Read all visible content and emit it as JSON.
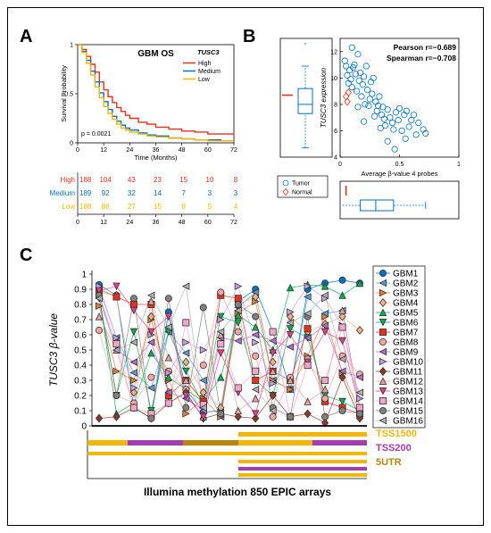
{
  "panel_labels": {
    "a": "A",
    "b": "B",
    "c": "C"
  },
  "chart_data": [
    {
      "panel": "A",
      "type": "line",
      "title": "GBM OS",
      "legend_title": "TUSC3",
      "xlabel": "Time (Months)",
      "ylabel": "Survival Probability",
      "xlim": [
        0,
        72
      ],
      "ylim": [
        0,
        1
      ],
      "xticks": [
        0,
        12,
        24,
        36,
        48,
        60,
        72
      ],
      "yticks": [
        0,
        0.5,
        1
      ],
      "legend_position": "top-right",
      "annotation": "p = 0.0021",
      "series": [
        {
          "name": "High",
          "color": "#e8301c",
          "x": [
            0,
            2,
            4,
            6,
            8,
            10,
            12,
            14,
            16,
            18,
            20,
            22,
            24,
            28,
            32,
            36,
            42,
            48,
            54,
            60,
            66,
            72
          ],
          "y": [
            1.0,
            0.95,
            0.88,
            0.8,
            0.72,
            0.62,
            0.54,
            0.47,
            0.41,
            0.36,
            0.32,
            0.28,
            0.25,
            0.21,
            0.19,
            0.16,
            0.14,
            0.12,
            0.11,
            0.09,
            0.09,
            0.08
          ]
        },
        {
          "name": "Medium",
          "color": "#0070c0",
          "x": [
            0,
            2,
            4,
            6,
            8,
            10,
            12,
            14,
            16,
            18,
            20,
            22,
            24,
            28,
            32,
            36,
            42,
            48,
            54,
            60,
            66,
            72
          ],
          "y": [
            1.0,
            0.93,
            0.84,
            0.73,
            0.62,
            0.51,
            0.42,
            0.34,
            0.27,
            0.22,
            0.18,
            0.15,
            0.13,
            0.1,
            0.08,
            0.07,
            0.05,
            0.04,
            0.03,
            0.03,
            0.02,
            0.02
          ]
        },
        {
          "name": "Low",
          "color": "#f2b705",
          "x": [
            0,
            2,
            4,
            6,
            8,
            10,
            12,
            14,
            16,
            18,
            20,
            22,
            24,
            28,
            32,
            36,
            42,
            48,
            54,
            60,
            66,
            72
          ],
          "y": [
            1.0,
            0.92,
            0.81,
            0.69,
            0.57,
            0.46,
            0.37,
            0.3,
            0.24,
            0.19,
            0.15,
            0.13,
            0.11,
            0.09,
            0.07,
            0.06,
            0.05,
            0.04,
            0.03,
            0.02,
            0.02,
            0.02
          ]
        }
      ],
      "risk_table": {
        "times": [
          0,
          12,
          24,
          36,
          48,
          60,
          72
        ],
        "rows": [
          {
            "label": "High",
            "color": "#e8301c",
            "values": [
              188,
              104,
              43,
              23,
              15,
              10,
              8
            ]
          },
          {
            "label": "Medium",
            "color": "#0070c0",
            "values": [
              189,
              92,
              32,
              14,
              7,
              3,
              3
            ]
          },
          {
            "label": "Low",
            "color": "#f2b705",
            "values": [
              188,
              86,
              27,
              15,
              8,
              5,
              4
            ]
          }
        ]
      }
    },
    {
      "panel": "B",
      "type": "scatter",
      "xlabel": "Average β-value 4 probes",
      "ylabel": "TUSC3 expression",
      "xlim": [
        0,
        1
      ],
      "ylim": [
        4,
        13
      ],
      "xticks": [
        0,
        0.5,
        1
      ],
      "yticks": [
        4,
        6,
        8,
        10,
        12
      ],
      "stats": [
        "Pearson r=−0.689",
        "Spearman r=−0.708"
      ],
      "legend": [
        {
          "name": "Tumor",
          "marker": "circle",
          "color": "#0070c0"
        },
        {
          "name": "Normal",
          "marker": "diamond",
          "color": "#e8301c"
        }
      ],
      "series": [
        {
          "name": "Tumor",
          "color": "#0070c0",
          "marker": "circle",
          "points": [
            [
              0.04,
              11.3
            ],
            [
              0.05,
              10.9
            ],
            [
              0.06,
              10.2
            ],
            [
              0.07,
              9.6
            ],
            [
              0.08,
              10.6
            ],
            [
              0.09,
              9.9
            ],
            [
              0.1,
              12.3
            ],
            [
              0.1,
              9.3
            ],
            [
              0.11,
              10.8
            ],
            [
              0.12,
              11.0
            ],
            [
              0.13,
              10.3
            ],
            [
              0.14,
              9.0
            ],
            [
              0.15,
              11.8
            ],
            [
              0.15,
              7.8
            ],
            [
              0.16,
              9.8
            ],
            [
              0.17,
              10.4
            ],
            [
              0.18,
              8.6
            ],
            [
              0.19,
              9.5
            ],
            [
              0.2,
              10.1
            ],
            [
              0.2,
              6.7
            ],
            [
              0.21,
              8.0
            ],
            [
              0.22,
              10.9
            ],
            [
              0.23,
              9.1
            ],
            [
              0.24,
              7.9
            ],
            [
              0.25,
              8.4
            ],
            [
              0.26,
              9.7
            ],
            [
              0.27,
              8.8
            ],
            [
              0.28,
              10.0
            ],
            [
              0.29,
              7.1
            ],
            [
              0.3,
              8.2
            ],
            [
              0.31,
              7.5
            ],
            [
              0.32,
              7.9
            ],
            [
              0.33,
              8.6
            ],
            [
              0.34,
              6.2
            ],
            [
              0.35,
              7.2
            ],
            [
              0.36,
              7.8
            ],
            [
              0.37,
              6.9
            ],
            [
              0.38,
              6.4
            ],
            [
              0.4,
              7.6
            ],
            [
              0.42,
              7.0
            ],
            [
              0.44,
              6.6
            ],
            [
              0.45,
              6.1
            ],
            [
              0.47,
              7.4
            ],
            [
              0.49,
              6.8
            ],
            [
              0.5,
              7.7
            ],
            [
              0.52,
              6.0
            ],
            [
              0.54,
              7.2
            ],
            [
              0.55,
              5.4
            ],
            [
              0.56,
              7.5
            ],
            [
              0.58,
              6.3
            ],
            [
              0.6,
              6.8
            ],
            [
              0.62,
              7.2
            ],
            [
              0.64,
              5.7
            ],
            [
              0.66,
              6.6
            ],
            [
              0.7,
              6.1
            ],
            [
              0.72,
              5.8
            ],
            [
              0.4,
              5.2
            ],
            [
              0.46,
              4.6
            ]
          ]
        },
        {
          "name": "Normal",
          "color": "#e8301c",
          "marker": "diamond",
          "points": [
            [
              0.05,
              8.6
            ],
            [
              0.06,
              8.2
            ],
            [
              0.07,
              8.9
            ]
          ]
        }
      ],
      "boxplot_y": {
        "whisker_low": 4.7,
        "q1": 7.3,
        "median": 8.0,
        "q3": 9.2,
        "whisker_high": 10.9,
        "normal_range": [
          8.5,
          8.9
        ]
      },
      "boxplot_x": {
        "whisker_low": 0.02,
        "q1": 0.17,
        "median": 0.3,
        "q3": 0.45,
        "whisker_high": 0.72,
        "normal_range": [
          0.03,
          0.08
        ]
      }
    },
    {
      "panel": "C",
      "type": "line",
      "ylabel": "TUSC3 β-value",
      "ylim": [
        0,
        1
      ],
      "yticks": [
        0,
        0.1,
        0.2,
        0.3,
        0.4,
        0.5,
        0.6,
        0.7,
        0.8,
        0.9,
        1
      ],
      "n_probes": 16,
      "xlabel": "Illumina methylation 850 EPIC arrays",
      "series": [
        {
          "name": "GBM1",
          "color": "#0070c0",
          "marker": "circle",
          "values": [
            0.93,
            0.86,
            0.12,
            0.05,
            0.75,
            0.24,
            0.09,
            0.1,
            0.82,
            0.9,
            0.62,
            0.24,
            0.9,
            0.94,
            0.96,
            0.94
          ]
        },
        {
          "name": "GBM2",
          "color": "#5b9bd5",
          "marker": "triangle-left",
          "values": [
            0.91,
            0.58,
            0.35,
            0.25,
            0.62,
            0.48,
            0.3,
            0.06,
            0.78,
            0.88,
            0.3,
            0.24,
            0.85,
            0.74,
            0.76,
            0.12
          ]
        },
        {
          "name": "GBM3",
          "color": "#ed7d31",
          "marker": "triangle-right",
          "values": [
            0.79,
            0.36,
            0.3,
            0.7,
            0.3,
            0.08,
            0.18,
            0.06,
            0.74,
            0.82,
            0.3,
            0.24,
            0.46,
            0.72,
            0.35,
            0.1
          ]
        },
        {
          "name": "GBM4",
          "color": "#f4b183",
          "marker": "diamond",
          "values": [
            0.88,
            0.86,
            0.22,
            0.72,
            0.22,
            0.42,
            0.22,
            0.12,
            0.8,
            0.85,
            0.42,
            0.72,
            0.62,
            0.67,
            0.72,
            0.63
          ]
        },
        {
          "name": "GBM5",
          "color": "#00b050",
          "marker": "triangle-up",
          "values": [
            0.86,
            0.08,
            0.15,
            0.48,
            0.32,
            0.24,
            0.16,
            0.32,
            0.73,
            0.65,
            0.5,
            0.91,
            0.93,
            0.92,
            0.86,
            0.94
          ]
        },
        {
          "name": "GBM6",
          "color": "#00b050",
          "marker": "triangle-down",
          "values": [
            0.84,
            0.2,
            0.62,
            0.1,
            0.62,
            0.36,
            0.14,
            0.72,
            0.68,
            0.3,
            0.2,
            0.64,
            0.58,
            0.2,
            0.16,
            0.1
          ]
        },
        {
          "name": "GBM7",
          "color": "#e8301c",
          "marker": "square",
          "values": [
            0.9,
            0.85,
            0.8,
            0.8,
            0.2,
            0.3,
            0.16,
            0.86,
            0.84,
            0.3,
            0.36,
            0.3,
            0.64,
            0.16,
            0.12,
            0.08
          ]
        },
        {
          "name": "GBM8",
          "color": "#f4a6a6",
          "marker": "circle",
          "values": [
            0.63,
            0.2,
            0.15,
            0.32,
            0.36,
            0.24,
            0.4,
            0.88,
            0.62,
            0.46,
            0.06,
            0.32,
            0.44,
            0.18,
            0.46,
            0.34
          ]
        },
        {
          "name": "GBM9",
          "color": "#b36bd3",
          "marker": "triangle-left",
          "values": [
            0.86,
            0.5,
            0.42,
            0.55,
            0.22,
            0.18,
            0.1,
            0.58,
            0.56,
            0.6,
            0.56,
            0.52,
            0.58,
            0.66,
            0.36,
            0.32
          ]
        },
        {
          "name": "GBM10",
          "color": "#c8a0e8",
          "marker": "triangle-right",
          "values": [
            0.92,
            0.58,
            0.25,
            0.6,
            0.35,
            0.55,
            0.5,
            0.7,
            0.92,
            0.55,
            0.28,
            0.75,
            0.92,
            0.84,
            0.66,
            0.18
          ]
        },
        {
          "name": "GBM11",
          "color": "#8b3a2a",
          "marker": "diamond",
          "values": [
            0.05,
            0.06,
            0.12,
            0.05,
            0.15,
            0.22,
            0.05,
            0.08,
            0.06,
            0.05,
            0.2,
            0.06,
            0.08,
            0.02,
            0.32,
            0.05
          ]
        },
        {
          "name": "GBM12",
          "color": "#e8a0a0",
          "marker": "triangle-up",
          "values": [
            0.72,
            0.5,
            0.12,
            0.82,
            0.45,
            0.3,
            0.06,
            0.6,
            0.1,
            0.18,
            0.36,
            0.3,
            0.16,
            0.24,
            0.76,
            0.12
          ]
        },
        {
          "name": "GBM13",
          "color": "#e83e8c",
          "marker": "triangle-down",
          "values": [
            0.89,
            0.92,
            0.76,
            0.62,
            0.72,
            0.2,
            0.06,
            0.48,
            0.22,
            0.08,
            0.48,
            0.6,
            0.42,
            0.62,
            0.56,
            0.12
          ]
        },
        {
          "name": "GBM14",
          "color": "#f4a6c8",
          "marker": "square",
          "values": [
            0.86,
            0.54,
            0.12,
            0.08,
            0.15,
            0.68,
            0.14,
            0.54,
            0.25,
            0.36,
            0.62,
            0.06,
            0.4,
            0.3,
            0.65,
            0.12
          ]
        },
        {
          "name": "GBM15",
          "color": "#808080",
          "marker": "circle",
          "values": [
            0.86,
            0.2,
            0.84,
            0.05,
            0.84,
            0.12,
            0.78,
            0.08,
            0.8,
            0.72,
            0.12,
            0.06,
            0.72,
            0.06,
            0.1,
            0.08
          ]
        },
        {
          "name": "GBM16",
          "color": "#b0b0b0",
          "marker": "triangle-left",
          "values": [
            0.84,
            0.5,
            0.55,
            0.86,
            0.65,
            0.92,
            0.12,
            0.62,
            0.76,
            0.24,
            0.1,
            0.68,
            0.74,
            0.86,
            0.44,
            0.22
          ]
        }
      ],
      "annotation_tracks": [
        {
          "name": "TSS1500",
          "color": "#f2b705",
          "segments": [
            [
              1,
              16
            ]
          ]
        },
        {
          "name": "TSS200",
          "color": "#a63cb5",
          "segments": [
            [
              1,
              16
            ]
          ]
        },
        {
          "name": "5UTR",
          "color": "#b8860b",
          "segments": [
            [
              1,
              16
            ]
          ]
        }
      ]
    }
  ]
}
